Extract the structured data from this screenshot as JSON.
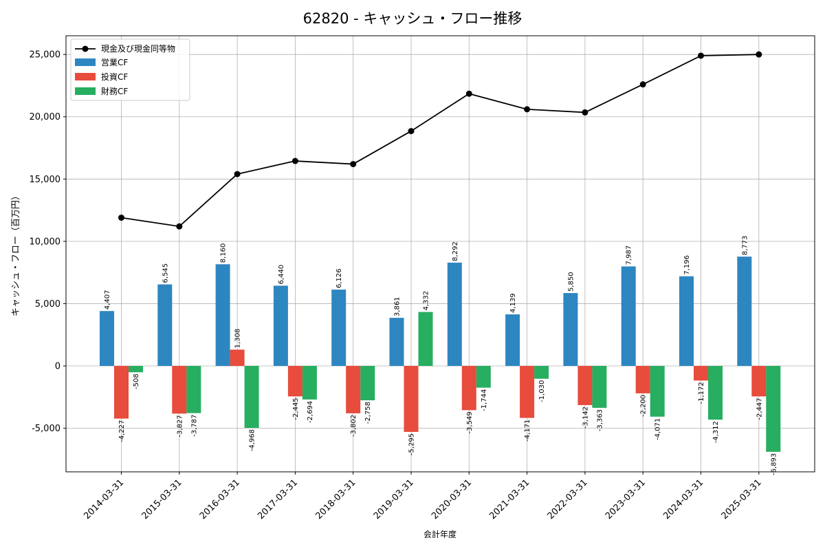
{
  "chart_data": {
    "type": "bar",
    "title": "62820 - キャッシュ・フロー推移",
    "xlabel": "会計年度",
    "ylabel": "キャッシュ・フロー（百万円）",
    "categories": [
      "2014-03-31",
      "2015-03-31",
      "2016-03-31",
      "2017-03-31",
      "2018-03-31",
      "2019-03-31",
      "2020-03-31",
      "2021-03-31",
      "2022-03-31",
      "2023-03-31",
      "2024-03-31",
      "2025-03-31"
    ],
    "ylim": [
      -8500,
      26500
    ],
    "yticks": [
      -5000,
      0,
      5000,
      10000,
      15000,
      20000,
      25000
    ],
    "ytick_labels": [
      "-5,000",
      "0",
      "5,000",
      "10,000",
      "15,000",
      "20,000",
      "25,000"
    ],
    "grid": true,
    "legend_position": "top-left",
    "series": [
      {
        "name": "営業CF",
        "type": "bar",
        "color": "#2e86c1",
        "values": [
          4407,
          6545,
          8160,
          6440,
          6126,
          3861,
          8292,
          4139,
          5850,
          7987,
          7196,
          8773
        ],
        "labels": [
          "4,407",
          "6,545",
          "8,160",
          "6,440",
          "6,126",
          "3,861",
          "8,292",
          "4,139",
          "5,850",
          "7,987",
          "7,196",
          "8,773"
        ]
      },
      {
        "name": "投資CF",
        "type": "bar",
        "color": "#e74c3c",
        "values": [
          -4227,
          -3827,
          1308,
          -2445,
          -3802,
          -5295,
          -3549,
          -4171,
          -3142,
          -2200,
          -1172,
          -2447
        ],
        "labels": [
          "-4,227",
          "-3,827",
          "1,308",
          "-2,445",
          "-3,802",
          "-5,295",
          "-3,549",
          "-4,171",
          "-3,142",
          "-2,200",
          "-1,172",
          "-2,447"
        ]
      },
      {
        "name": "財務CF",
        "type": "bar",
        "color": "#27ae60",
        "values": [
          -508,
          -3787,
          -4968,
          -2694,
          -2758,
          4332,
          -1744,
          -1030,
          -3363,
          -4071,
          -4312,
          -6893
        ],
        "labels": [
          "-508",
          "-3,787",
          "-4,968",
          "-2,694",
          "-2,758",
          "4,332",
          "-1,744",
          "-1,030",
          "-3,363",
          "-4,071",
          "-4,312",
          "-6,893"
        ]
      },
      {
        "name": "現金及び現金同等物",
        "type": "line",
        "color": "#000000",
        "values": [
          11900,
          11200,
          15400,
          16450,
          16200,
          18850,
          21850,
          20600,
          20350,
          22600,
          24900,
          25000
        ]
      }
    ]
  }
}
